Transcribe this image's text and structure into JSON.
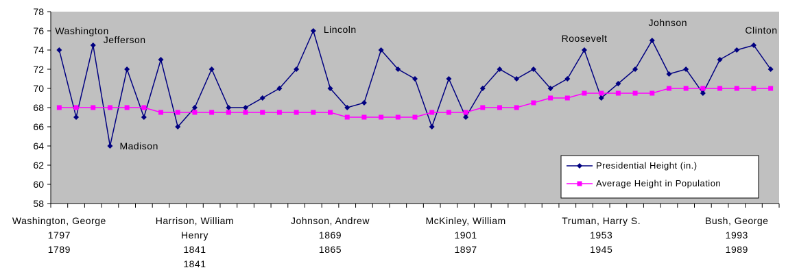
{
  "chart_data": {
    "type": "line",
    "title": "",
    "xlabel": "",
    "ylabel": "",
    "ylim": [
      58,
      78
    ],
    "yticks": [
      58,
      60,
      62,
      64,
      66,
      68,
      70,
      72,
      74,
      76,
      78
    ],
    "grid": false,
    "legend_position": "bottom-right",
    "colors": {
      "plot_bg": "#c0c0c0",
      "series_height": "#000080",
      "series_population": "#ff00ff"
    },
    "x_count": 43,
    "x_labels": [
      {
        "index": 0,
        "lines": [
          "Washington, George",
          "1797",
          "1789"
        ]
      },
      {
        "index": 8,
        "lines": [
          "Harrison, William",
          "Henry",
          "1841",
          "1841"
        ]
      },
      {
        "index": 16,
        "lines": [
          "Johnson, Andrew",
          "1869",
          "1865"
        ]
      },
      {
        "index": 24,
        "lines": [
          "McKinley, William",
          "1901",
          "1897"
        ]
      },
      {
        "index": 32,
        "lines": [
          "Truman, Harry S.",
          "1953",
          "1945"
        ]
      },
      {
        "index": 40,
        "lines": [
          "Bush, George",
          "1993",
          "1989"
        ]
      }
    ],
    "series": [
      {
        "name": "Presidential Height (in.)",
        "marker": "diamond",
        "values": [
          74,
          67,
          74.5,
          64,
          72,
          67,
          73,
          66,
          68,
          72,
          68,
          68,
          69,
          70,
          72,
          76,
          70,
          68,
          68.5,
          74,
          72,
          71,
          66,
          71,
          67,
          70,
          72,
          71,
          72,
          70,
          71,
          74,
          69,
          70.5,
          72,
          75,
          71.5,
          72,
          69.5,
          73,
          74,
          74.5,
          72
        ]
      },
      {
        "name": "Average Height in Population",
        "marker": "square",
        "values": [
          68,
          68,
          68,
          68,
          68,
          68,
          67.5,
          67.5,
          67.5,
          67.5,
          67.5,
          67.5,
          67.5,
          67.5,
          67.5,
          67.5,
          67.5,
          67,
          67,
          67,
          67,
          67,
          67.5,
          67.5,
          67.5,
          68,
          68,
          68,
          68.5,
          69,
          69,
          69.5,
          69.5,
          69.5,
          69.5,
          69.5,
          70,
          70,
          70,
          70,
          70,
          70,
          70
        ]
      }
    ],
    "annotations": [
      {
        "text": "Washington",
        "index": 0
      },
      {
        "text": "Jefferson",
        "index": 2
      },
      {
        "text": "Madison",
        "index": 3
      },
      {
        "text": "Lincoln",
        "index": 15
      },
      {
        "text": "Roosevelt",
        "index": 31
      },
      {
        "text": "Johnson",
        "index": 35
      },
      {
        "text": "Clinton",
        "index": 41
      }
    ]
  }
}
